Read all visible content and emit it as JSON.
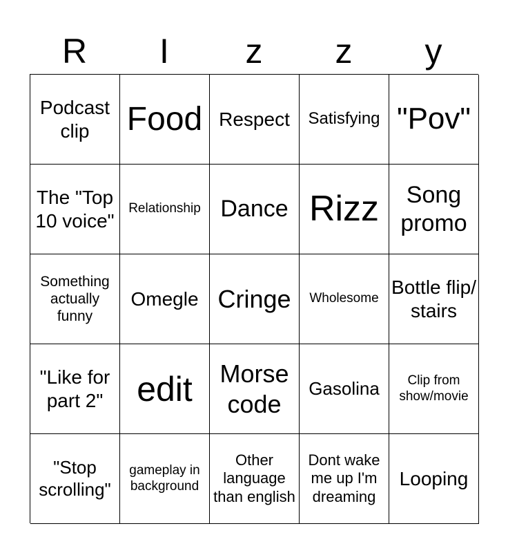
{
  "title_letters": [
    "R",
    "I",
    "z",
    "z",
    "y"
  ],
  "cells": [
    "Podcast clip",
    "Food",
    "Respect",
    "Satisfying",
    "\"Pov\"",
    "The \"Top 10 voice\"",
    "Relationship",
    "Dance",
    "Rizz",
    "Song promo",
    "Something actually funny",
    "Omegle",
    "Cringe",
    "Wholesome",
    "Bottle flip/ stairs",
    "\"Like for part 2\"",
    "edit",
    "Morse code",
    "Gasolina",
    "Clip from show/movie",
    "\"Stop scrolling\"",
    "gameplay in background",
    "Other language than english",
    "Dont wake me up I'm dreaming",
    "Looping"
  ]
}
